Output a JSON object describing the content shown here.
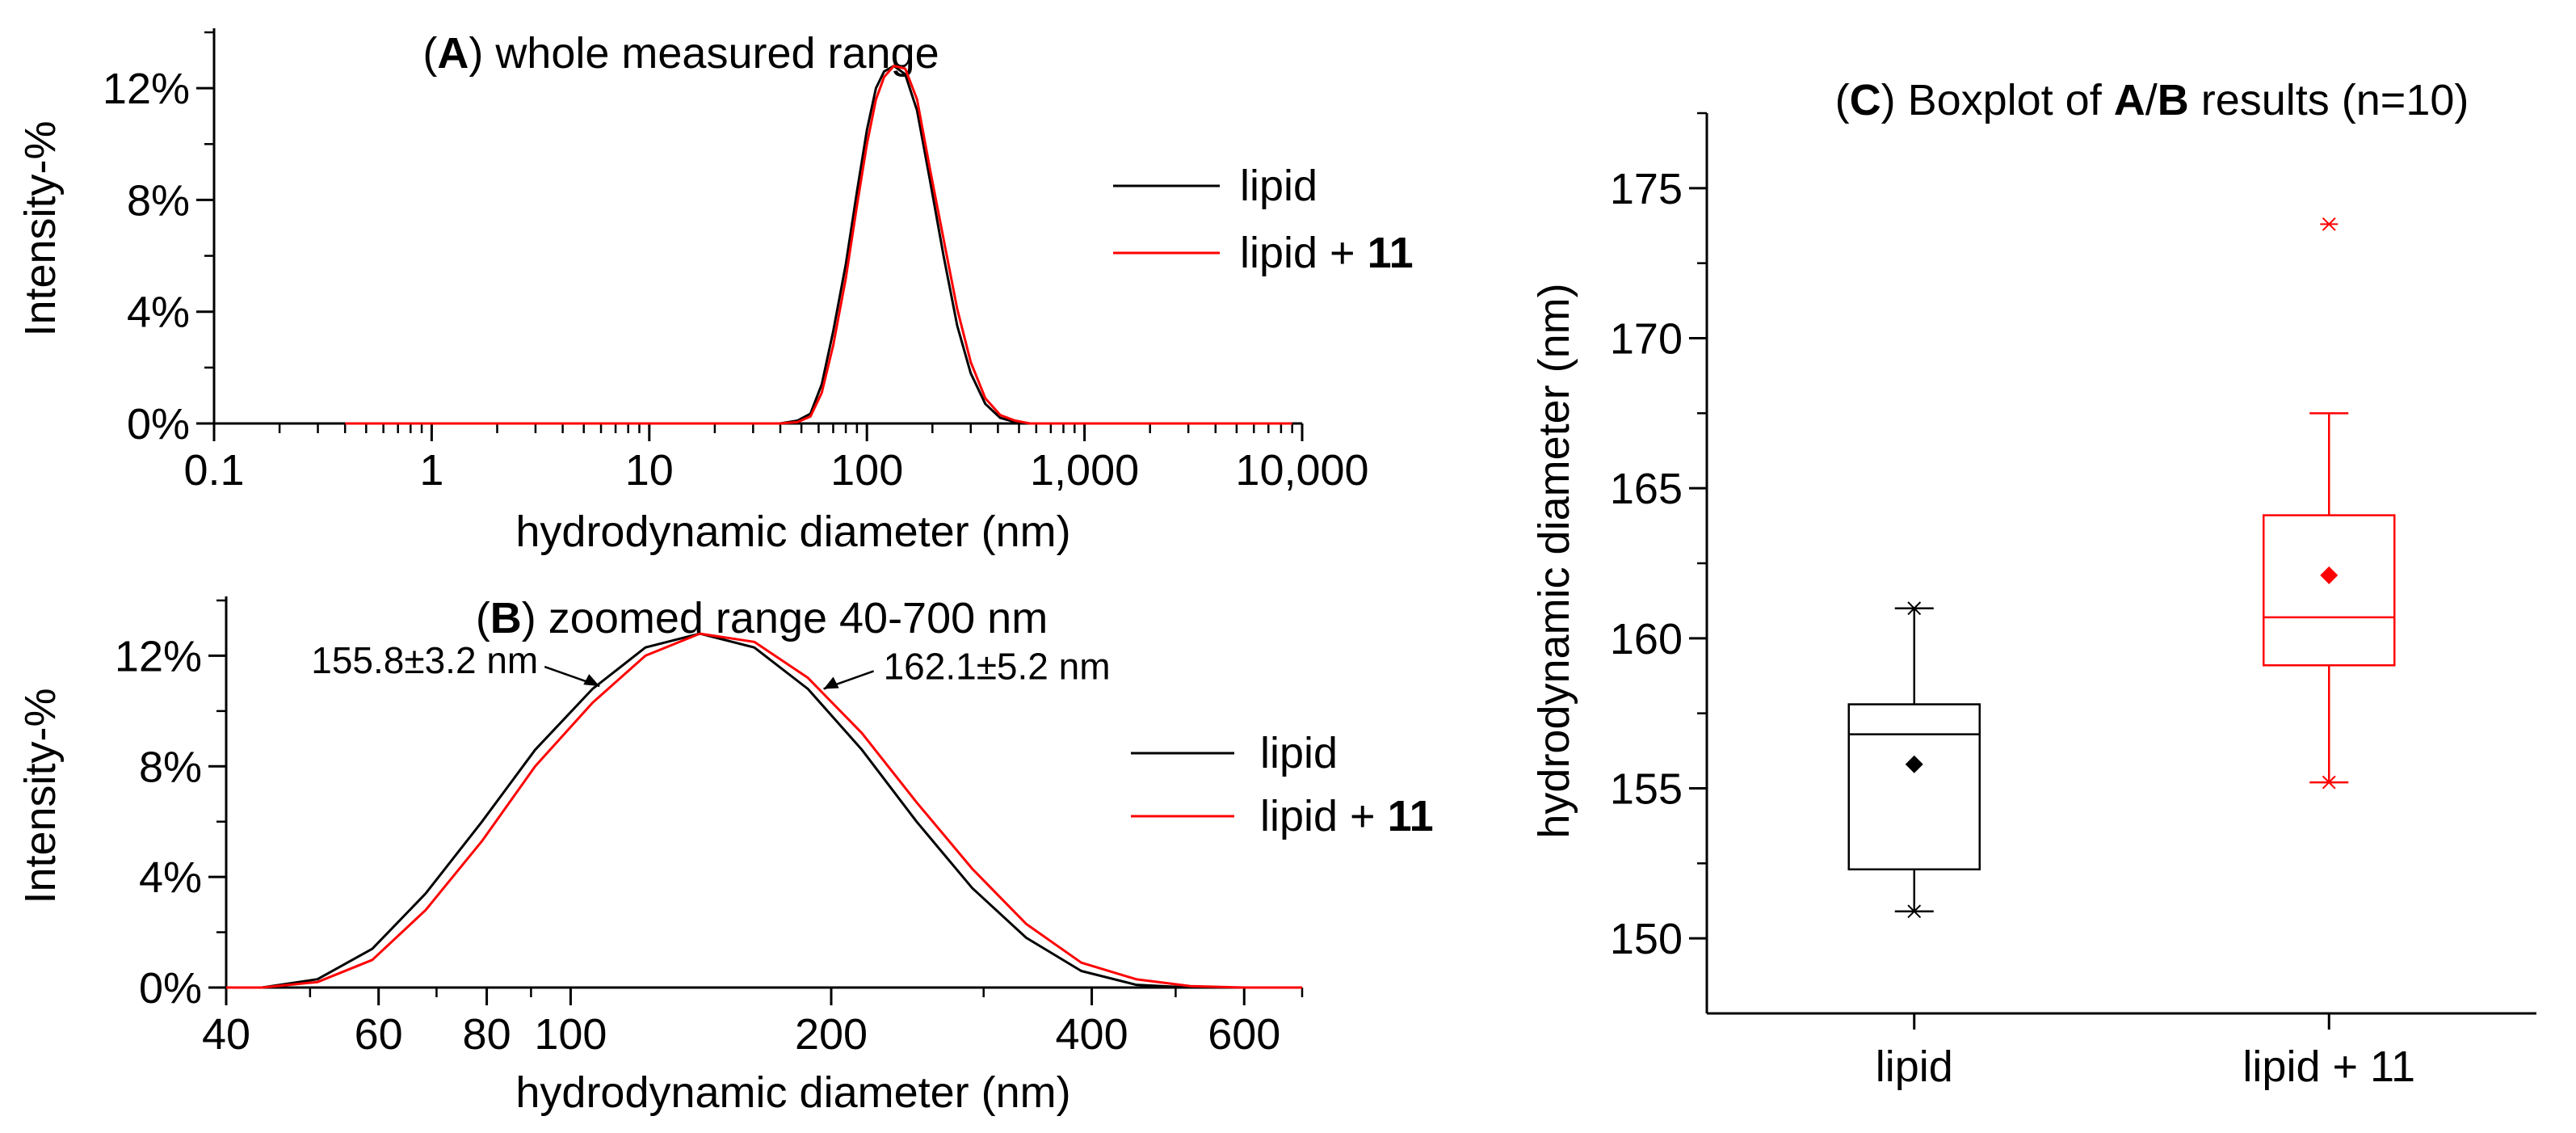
{
  "colors": {
    "lipid": "#000000",
    "lipid11": "#ff0000"
  },
  "chart_data": [
    {
      "id": "A",
      "type": "line",
      "title": {
        "letter": "A",
        "text": ") whole measured range"
      },
      "xlabel": "hydrodynamic diameter (nm)",
      "ylabel": "Intensity-%",
      "xscale": "log",
      "xlim": [
        0.1,
        10000
      ],
      "ylim": [
        0,
        14
      ],
      "xticks": [
        {
          "v": 0.1,
          "label": "0.1"
        },
        {
          "v": 1,
          "label": "1"
        },
        {
          "v": 10,
          "label": "10"
        },
        {
          "v": 100,
          "label": "100"
        },
        {
          "v": 1000,
          "label": "1,000"
        },
        {
          "v": 10000,
          "label": "10,000"
        }
      ],
      "yticks": [
        {
          "v": 0,
          "label": "0%"
        },
        {
          "v": 4,
          "label": "4%"
        },
        {
          "v": 8,
          "label": "8%"
        },
        {
          "v": 12,
          "label": "12%"
        }
      ],
      "legend": {
        "position": "right",
        "entries": [
          {
            "name": "lipid"
          },
          {
            "name": "lipid + ",
            "bold": "11"
          }
        ]
      },
      "series": [
        {
          "name": "lipid",
          "color": "#000000",
          "x": [
            0.4,
            1,
            5,
            20,
            40,
            48,
            55,
            62,
            70,
            80,
            90,
            100,
            110,
            120,
            133,
            150,
            170,
            195,
            225,
            260,
            300,
            350,
            410,
            480,
            560,
            700,
            1000,
            3000,
            9000
          ],
          "y": [
            0,
            0,
            0,
            0,
            0,
            0.1,
            0.35,
            1.4,
            3.3,
            5.7,
            8.3,
            10.5,
            12.0,
            12.6,
            12.8,
            12.5,
            11.2,
            8.7,
            6.0,
            3.5,
            1.8,
            0.7,
            0.2,
            0.05,
            0,
            0,
            0,
            0,
            0
          ]
        },
        {
          "name": "lipid + 11",
          "color": "#ff0000",
          "x": [
            0.4,
            1,
            5,
            20,
            40,
            48,
            55,
            62,
            70,
            80,
            90,
            100,
            110,
            120,
            133,
            150,
            170,
            195,
            225,
            260,
            300,
            350,
            410,
            480,
            560,
            700,
            1000,
            3000,
            9000
          ],
          "y": [
            0,
            0,
            0,
            0,
            0,
            0.05,
            0.25,
            1.1,
            2.8,
            5.2,
            7.8,
            10.0,
            11.6,
            12.4,
            12.8,
            12.7,
            11.6,
            9.1,
            6.6,
            4.1,
            2.2,
            0.9,
            0.3,
            0.1,
            0,
            0,
            0,
            0,
            0
          ]
        }
      ]
    },
    {
      "id": "B",
      "type": "line",
      "title": {
        "letter": "B",
        "text": ") zoomed range 40-700 nm"
      },
      "xlabel": "hydrodynamic diameter (nm)",
      "ylabel": "Intensity-%",
      "xscale": "log",
      "xlim": [
        40,
        700
      ],
      "ylim": [
        0,
        14
      ],
      "xticks": [
        {
          "v": 40,
          "label": "40"
        },
        {
          "v": 60,
          "label": "60"
        },
        {
          "v": 80,
          "label": "80"
        },
        {
          "v": 100,
          "label": "100"
        },
        {
          "v": 200,
          "label": "200"
        },
        {
          "v": 400,
          "label": "400"
        },
        {
          "v": 600,
          "label": "600"
        }
      ],
      "yticks": [
        {
          "v": 0,
          "label": "0%"
        },
        {
          "v": 4,
          "label": "4%"
        },
        {
          "v": 8,
          "label": "8%"
        },
        {
          "v": 12,
          "label": "12%"
        }
      ],
      "legend": {
        "position": "right",
        "entries": [
          {
            "name": "lipid"
          },
          {
            "name": "lipid + ",
            "bold": "11"
          }
        ]
      },
      "annotations": [
        {
          "text": "155.8±3.2 nm",
          "x": 108,
          "y": 10.9,
          "side": "left"
        },
        {
          "text": "162.1±5.2 nm",
          "x": 196,
          "y": 10.8,
          "side": "right"
        }
      ],
      "series": [
        {
          "name": "lipid",
          "color": "#000000",
          "x": [
            40,
            44,
            51,
            59,
            68,
            79,
            91,
            106,
            122,
            141,
            163,
            188,
            217,
            251,
            291,
            336,
            389,
            450,
            520,
            601,
            700
          ],
          "y": [
            0,
            0,
            0.3,
            1.4,
            3.4,
            6.0,
            8.6,
            10.8,
            12.3,
            12.8,
            12.3,
            10.8,
            8.6,
            6.0,
            3.6,
            1.8,
            0.6,
            0.1,
            0,
            0,
            0
          ]
        },
        {
          "name": "lipid + 11",
          "color": "#ff0000",
          "x": [
            40,
            44,
            51,
            59,
            68,
            79,
            91,
            106,
            122,
            141,
            163,
            188,
            217,
            251,
            291,
            336,
            389,
            450,
            520,
            601,
            700
          ],
          "y": [
            0,
            0,
            0.2,
            1.0,
            2.8,
            5.3,
            8.0,
            10.3,
            12.0,
            12.8,
            12.5,
            11.2,
            9.2,
            6.7,
            4.3,
            2.3,
            0.9,
            0.3,
            0.05,
            0,
            0
          ]
        }
      ]
    },
    {
      "id": "C",
      "type": "box",
      "title": {
        "pre": "(C) Boxplot of ",
        "a": "A",
        "slash": "/",
        "b": "B",
        "post": " results (n=10)"
      },
      "ylabel": "hydrodynamic diameter (nm)",
      "ylim": [
        147.5,
        177.5
      ],
      "yticks": [
        150,
        155,
        160,
        165,
        170,
        175
      ],
      "categories": [
        "lipid",
        "lipid + 11"
      ],
      "boxes": [
        {
          "name": "lipid",
          "color": "#000000",
          "q1": 152.3,
          "median": 156.8,
          "q3": 157.8,
          "whisker_low": 150.9,
          "whisker_high": 161.0,
          "mean": 155.8,
          "min": 150.9,
          "max": 161.0,
          "outliers": []
        },
        {
          "name": "lipid + 11",
          "color": "#ff0000",
          "q1": 159.1,
          "median": 160.7,
          "q3": 164.1,
          "whisker_low": 155.2,
          "whisker_high": 167.5,
          "mean": 162.1,
          "min": 155.2,
          "max": 173.8,
          "outliers": [
            173.8
          ]
        }
      ]
    }
  ]
}
